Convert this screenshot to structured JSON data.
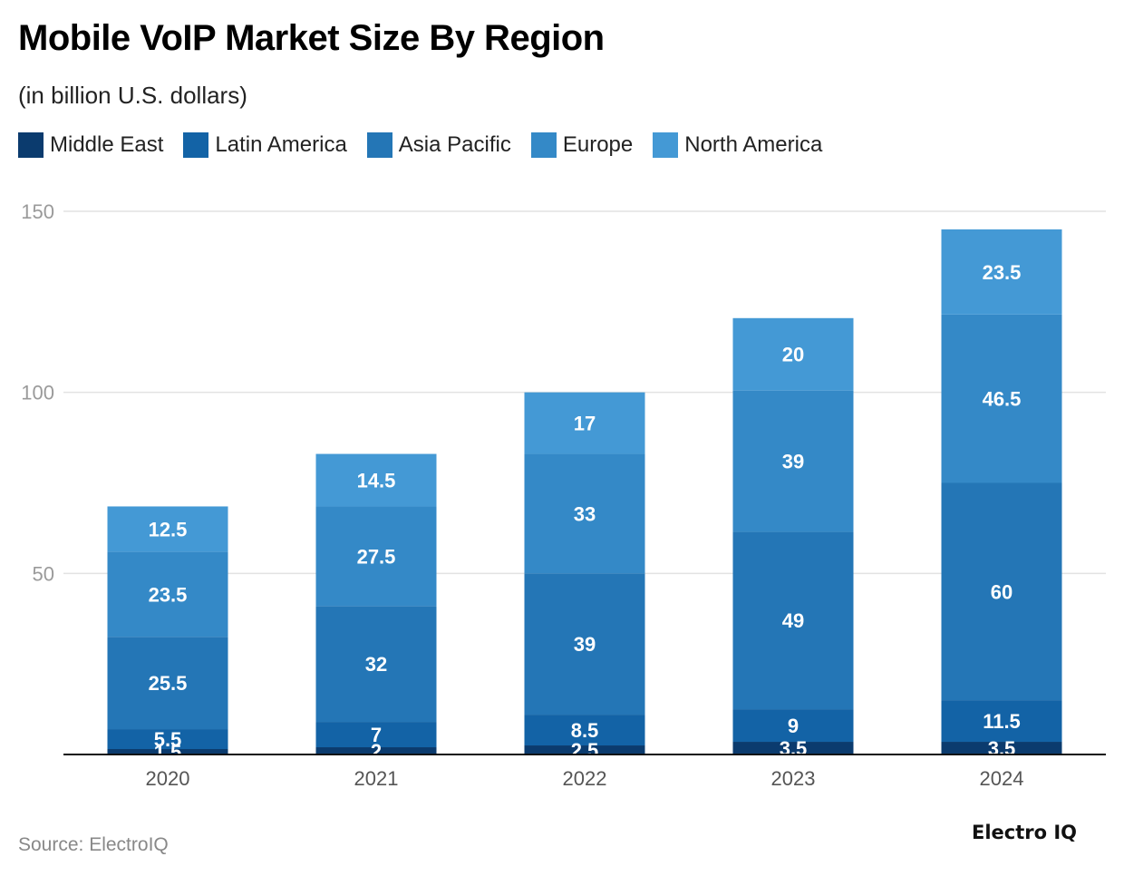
{
  "chart_data": {
    "type": "bar",
    "stacked": true,
    "title": "Mobile VoIP Market Size By Region",
    "subtitle": "(in billion U.S. dollars)",
    "categories": [
      "2020",
      "2021",
      "2022",
      "2023",
      "2024"
    ],
    "series": [
      {
        "name": "Middle East",
        "color": "#0b3b6e",
        "values": [
          1.5,
          2,
          2.5,
          3.5,
          3.5
        ],
        "labels": [
          "1.5",
          "2",
          "2.5",
          "3.5",
          "3.5"
        ]
      },
      {
        "name": "Latin America",
        "color": "#1363a6",
        "values": [
          5.5,
          7,
          8.5,
          9,
          11.5
        ],
        "labels": [
          "5.5",
          "7",
          "8.5",
          "9",
          "11.5"
        ]
      },
      {
        "name": "Asia Pacific",
        "color": "#2476b6",
        "values": [
          25.5,
          32,
          39,
          49,
          60
        ],
        "labels": [
          "25.5",
          "32",
          "39",
          "49",
          "60"
        ]
      },
      {
        "name": "Europe",
        "color": "#3489c7",
        "values": [
          23.5,
          27.5,
          33,
          39,
          46.5
        ],
        "labels": [
          "23.5",
          "27.5",
          "33",
          "39",
          "46.5"
        ]
      },
      {
        "name": "North America",
        "color": "#4499d5",
        "values": [
          12.5,
          14.5,
          17,
          20,
          23.5
        ],
        "labels": [
          "12.5",
          "14.5",
          "17",
          "20",
          "23.5"
        ]
      }
    ],
    "yticks": [
      "50",
      "100",
      "150"
    ],
    "ytick_values": [
      50,
      100,
      150
    ],
    "ylim": [
      0,
      150
    ],
    "legend_position": "top-left",
    "grid": true
  },
  "source": "Source: ElectroIQ",
  "brand": "Electro IQ"
}
